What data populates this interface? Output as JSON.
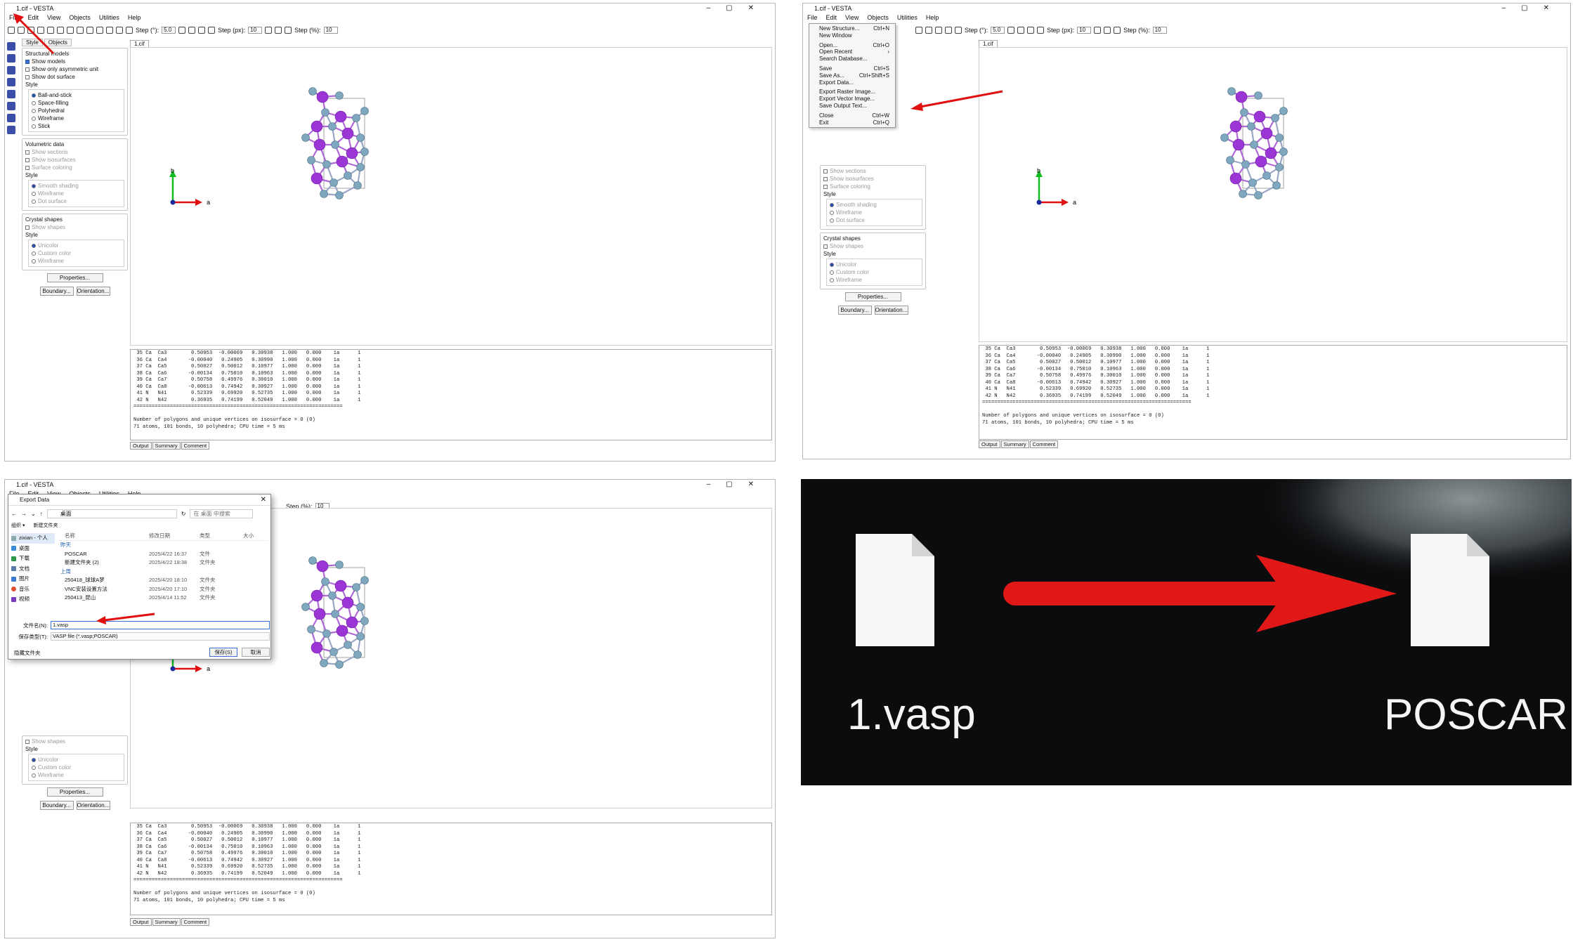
{
  "window_title": "1.cif - VESTA",
  "menu": [
    "File",
    "Edit",
    "View",
    "Objects",
    "Utilities",
    "Help"
  ],
  "toolbar": {
    "step_deg_label": "Step (°):",
    "step_deg": "5.0",
    "step_px_label": "Step (px):",
    "step_px": "10",
    "step_pct_label": "Step (%):",
    "step_pct": "10"
  },
  "file_tab": "1.cif",
  "left_tabs": [
    "Style",
    "Objects"
  ],
  "structural_models": {
    "title": "Structural models",
    "show_models": "Show models",
    "show_asym": "Show only asymmetric unit",
    "show_dot": "Show dot surface",
    "style_title": "Style",
    "styles": [
      "Ball-and-stick",
      "Space-filling",
      "Polyhedral",
      "Wireframe",
      "Stick"
    ]
  },
  "volumetric": {
    "title": "Volumetric data",
    "items": [
      "Show sections",
      "Show isosurfaces",
      "Surface coloring"
    ],
    "style_title": "Style",
    "styles": [
      "Smooth shading",
      "Wireframe",
      "Dot surface"
    ]
  },
  "crystal": {
    "title": "Crystal shapes",
    "show": "Show shapes",
    "style_title": "Style",
    "styles": [
      "Unicolor",
      "Custom color",
      "Wireframe"
    ]
  },
  "buttons": {
    "properties": "Properties...",
    "boundary": "Boundary...",
    "orientation": "Orientation..."
  },
  "axes": {
    "a": "a",
    "b": "b"
  },
  "output_text": " 35 Ca  Ca3        0.50953  -0.00069   0.30938   1.000   0.000    1a      1\n 36 Ca  Ca4       -0.00040   0.24905   0.30990   1.000   0.000    1a      1\n 37 Ca  Ca5        0.50027   0.50012   0.10977   1.000   0.000    1a      1\n 38 Ca  Ca6       -0.00134   0.75010   0.10963   1.000   0.000    1a      1\n 39 Ca  Ca7        0.50758   0.49976   0.30010   1.000   0.000    1a      1\n 40 Ca  Ca8       -0.00613   0.74942   0.30927   1.000   0.000    1a      1\n 41 N   N41        0.52339   0.69920   0.52735   1.000   0.000    1a      1\n 42 N   N42        0.36935   0.74199   0.52049   1.000   0.000    1a      1\n=====================================================================\n\nNumber of polygons and unique vertices on isosurface = 0 (0)\n71 atoms, 101 bonds, 10 polyhedra; CPU time = 5 ms",
  "output_tabs": [
    "Output",
    "Summary",
    "Comment"
  ],
  "file_menu": [
    {
      "label": "New Structure...",
      "key": "Ctrl+N"
    },
    {
      "label": "New Window",
      "key": ""
    },
    {
      "sep": true
    },
    {
      "label": "Open...",
      "key": "Ctrl+O"
    },
    {
      "label": "Open Recent",
      "key": "›"
    },
    {
      "label": "Search Database...",
      "key": ""
    },
    {
      "sep": true
    },
    {
      "label": "Save",
      "key": "Ctrl+S"
    },
    {
      "label": "Save As...",
      "key": "Ctrl+Shift+S"
    },
    {
      "label": "Export Data...",
      "key": ""
    },
    {
      "sep": true
    },
    {
      "label": "Export Raster Image...",
      "key": ""
    },
    {
      "label": "Export Vector Image...",
      "key": ""
    },
    {
      "label": "Save Output Text...",
      "key": ""
    },
    {
      "sep": true
    },
    {
      "label": "Close",
      "key": "Ctrl+W"
    },
    {
      "label": "Exit",
      "key": "Ctrl+Q"
    }
  ],
  "dialog": {
    "title": "Export Data",
    "path": "桌面",
    "search": "在 桌面 中搜索",
    "organize": "组织 ▾",
    "new_folder": "新建文件夹",
    "sidebar": [
      "zixian - 个人",
      "桌面",
      "下载",
      "文档",
      "图片",
      "音乐",
      "视频"
    ],
    "headers": [
      "名称",
      "修改日期",
      "类型",
      "大小"
    ],
    "group_yesterday": "昨天",
    "group_lastweek": "上周",
    "files": [
      {
        "name": "POSCAR",
        "date": "2025/4/22 16:37",
        "type": "文件"
      },
      {
        "name": "新建文件夹 (2)",
        "date": "2025/4/22 18:38",
        "type": "文件夹"
      },
      {
        "name": "250418_球球A梦",
        "date": "2025/4/20 18:10",
        "type": "文件夹"
      },
      {
        "name": "VNC安装设置方法",
        "date": "2025/4/20 17:10",
        "type": "文件夹"
      },
      {
        "name": "250413_昆山",
        "date": "2025/4/14 11:52",
        "type": "文件夹"
      }
    ],
    "filename_label": "文件名(N):",
    "filename": "1.vasp",
    "filetype_label": "保存类型(T):",
    "filetype": "VASP file (*.vasp;POSCAR)",
    "hide_folders": "隐藏文件夹",
    "save": "保存(S)",
    "cancel": "取消"
  },
  "rename": {
    "from": "1.vasp",
    "to": "POSCAR"
  },
  "colors": {
    "accent": "#e01010",
    "ca": "#9b35d6",
    "n": "#7fa7c0",
    "bond": "#9aa8c6"
  }
}
